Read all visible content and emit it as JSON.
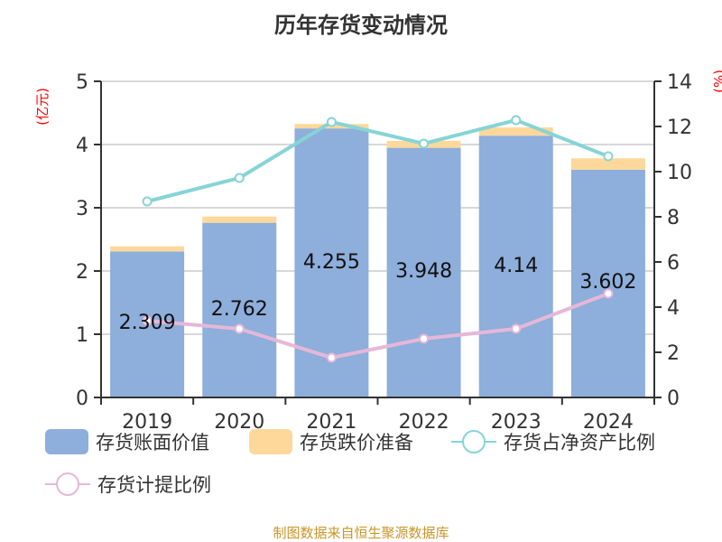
{
  "title": "历年存货变动情况",
  "source": "制图数据来自恒生聚源数据库",
  "chart_data": {
    "type": "bar",
    "title": "历年存货变动情况",
    "categories": [
      "2019",
      "2020",
      "2021",
      "2022",
      "2023",
      "2024"
    ],
    "ylabel_left": "(亿元)",
    "ylabel_right": "(%)",
    "ylim_left": [
      0,
      5
    ],
    "ylim_right": [
      0,
      14
    ],
    "yticks_left": [
      "0",
      "1",
      "2",
      "3",
      "4",
      "5"
    ],
    "yticks_right": [
      "0",
      "2",
      "4",
      "6",
      "8",
      "10",
      "12",
      "14"
    ],
    "grid": true,
    "legend": "bottom",
    "series": [
      {
        "name": "存货账面价值",
        "type": "bar",
        "axis": "left",
        "color": "#8eaedb",
        "values": [
          2.309,
          2.762,
          4.255,
          3.948,
          4.14,
          3.602
        ],
        "labels": [
          "2.309",
          "2.762",
          "4.255",
          "3.948",
          "4.14",
          "3.602"
        ]
      },
      {
        "name": "存货跌价准备",
        "type": "bar",
        "axis": "left",
        "stacked": true,
        "color": "#fdd89a",
        "values": [
          0.08,
          0.1,
          0.07,
          0.11,
          0.13,
          0.18
        ]
      },
      {
        "name": "存货占净资产比例",
        "type": "line",
        "axis": "right",
        "color": "#86d4d6",
        "values": [
          8.68,
          9.72,
          12.2,
          11.24,
          12.28,
          10.68
        ]
      },
      {
        "name": "存货计提比例",
        "type": "line",
        "axis": "right",
        "color": "#e5b8d8",
        "values": [
          3.4,
          3.04,
          1.76,
          2.6,
          3.04,
          4.6
        ]
      }
    ]
  }
}
